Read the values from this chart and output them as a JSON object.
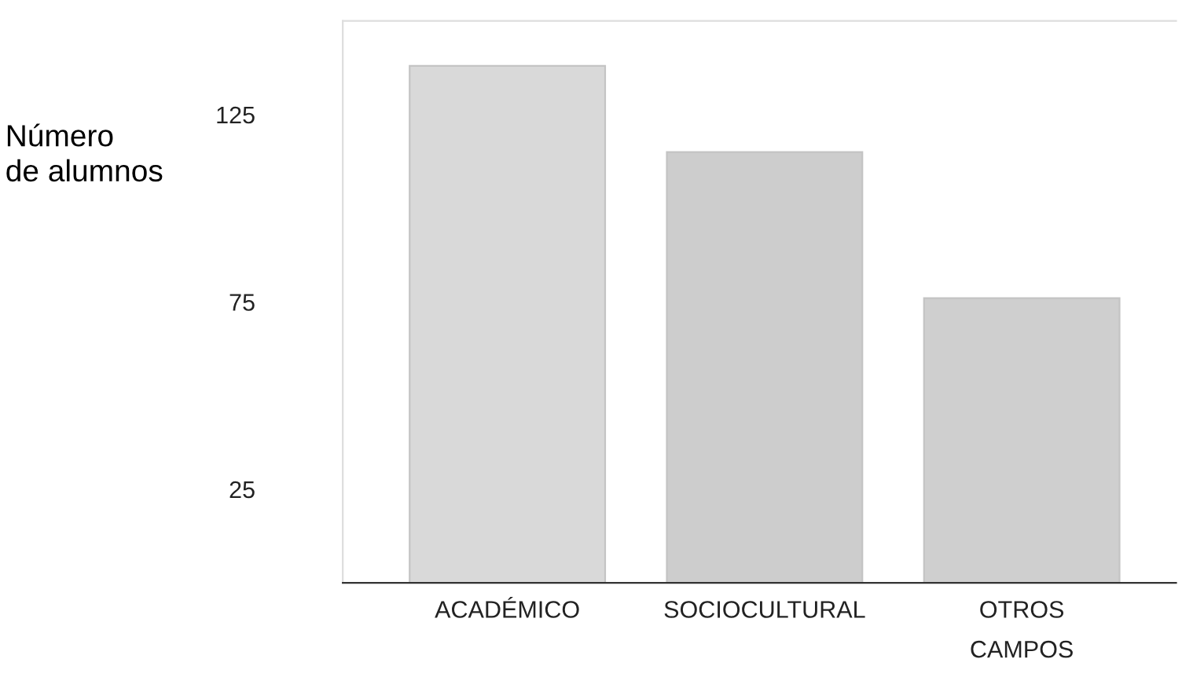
{
  "chart_data": {
    "type": "bar",
    "ylabel": "Número\nde alumnos",
    "categories": [
      "ACADÉMICO",
      "SOCIOCULTURAL",
      "OTROS\nCAMPOS"
    ],
    "values": [
      138,
      115,
      76
    ],
    "colors": [
      "#d9d9d9",
      "#cdcdcd",
      "#cfcfcf"
    ],
    "ylim": [
      0,
      150
    ],
    "yticks": [
      25,
      75,
      125
    ],
    "grid": false,
    "legend": false
  }
}
